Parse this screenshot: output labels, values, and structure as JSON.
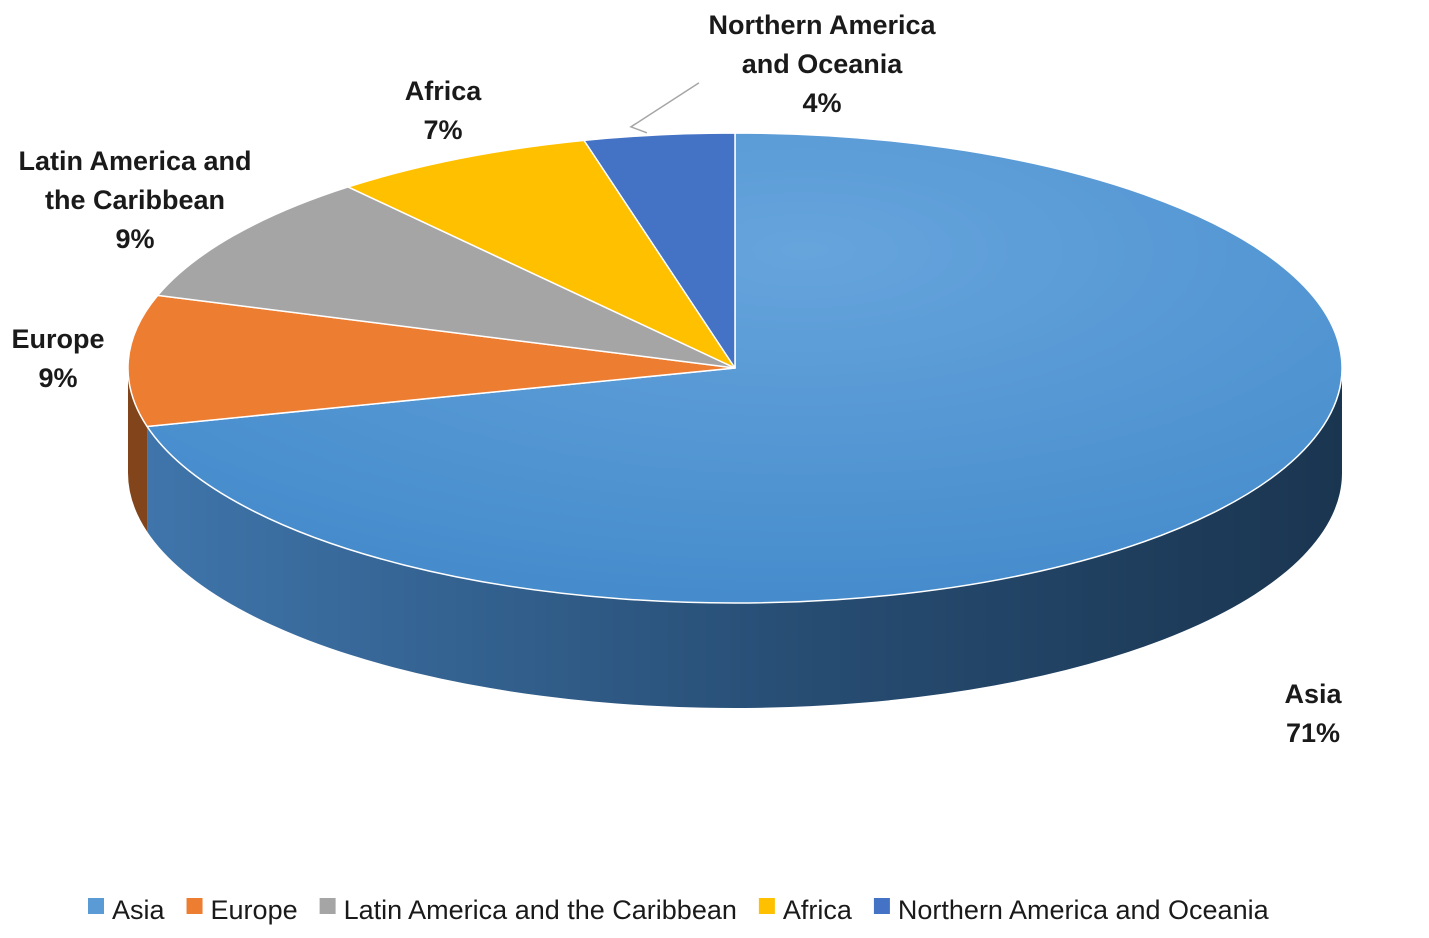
{
  "chart_data": {
    "type": "pie",
    "title": "",
    "slices": [
      {
        "name": "Asia",
        "value": 71,
        "label_lines": [
          "Asia",
          "71%"
        ],
        "color": "#5b9bd5"
      },
      {
        "name": "Europe",
        "value": 9,
        "label_lines": [
          "Europe",
          "9%"
        ],
        "color": "#ed7d31"
      },
      {
        "name": "Latin America and the Caribbean",
        "value": 9,
        "label_lines": [
          "Latin America and",
          "the Caribbean",
          "9%"
        ],
        "color": "#a5a5a5"
      },
      {
        "name": "Africa",
        "value": 7,
        "label_lines": [
          "Africa",
          "7%"
        ],
        "color": "#ffc000"
      },
      {
        "name": "Northern America and Oceania",
        "value": 4,
        "label_lines": [
          "Northern America",
          "and Oceania",
          "4%"
        ],
        "color": "#4472c4"
      }
    ],
    "legend": {
      "position": "bottom",
      "entries": [
        "Asia",
        "Europe",
        "Latin America and the Caribbean",
        "Africa",
        "Northern America and Oceania"
      ]
    }
  }
}
